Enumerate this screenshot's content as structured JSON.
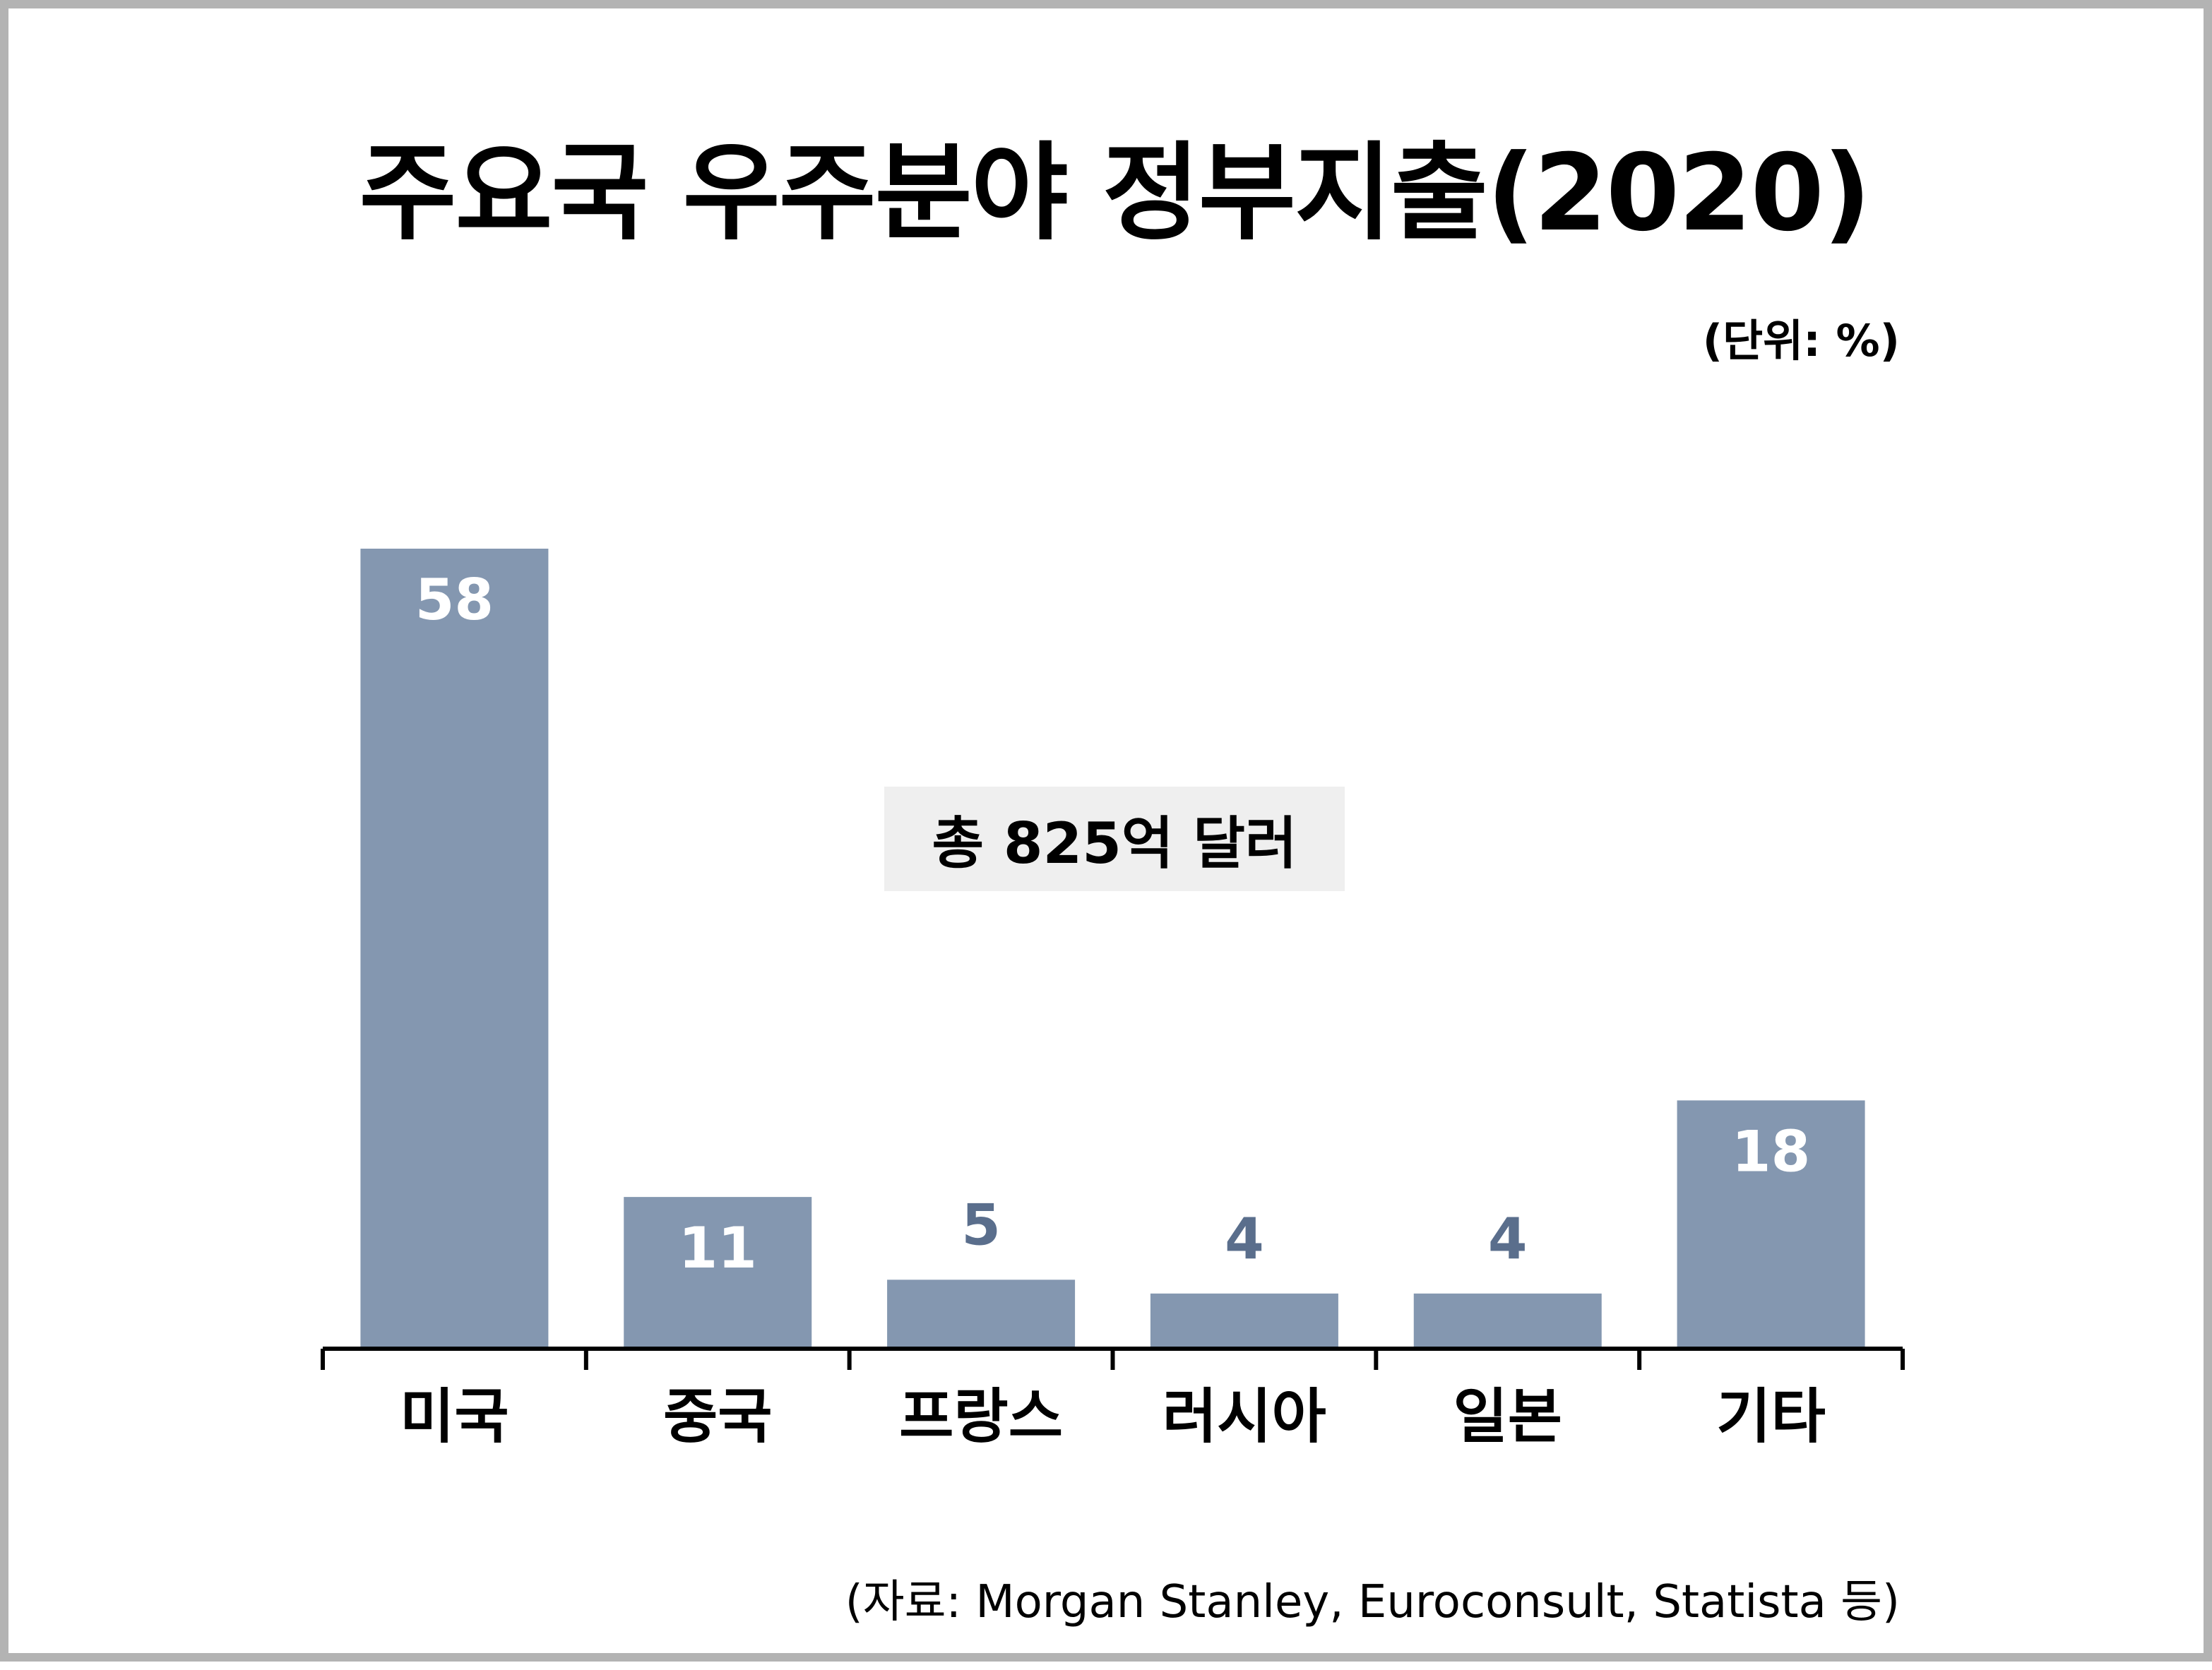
{
  "title": "주요국 우주분야 정부지출(2020)",
  "unit_note": "(단위: %)",
  "source": "(자료: Morgan Stanley, Euroconsult, Statista 등)",
  "total_annotation": "총 825억 달러",
  "colors": {
    "bar": "#8497b0",
    "label_inside": "#ffffff",
    "label_outside": "#5a6e8c",
    "axis": "#000000"
  },
  "chart_data": {
    "type": "bar",
    "title": "주요국 우주분야 정부지출(2020)",
    "categories": [
      "미국",
      "중국",
      "프랑스",
      "러시아",
      "일본",
      "기타"
    ],
    "values": [
      58,
      11,
      5,
      4,
      4,
      18
    ],
    "ylim": [
      0,
      58
    ],
    "xlabel": "",
    "ylabel": "",
    "grid": false,
    "legend": "none"
  }
}
